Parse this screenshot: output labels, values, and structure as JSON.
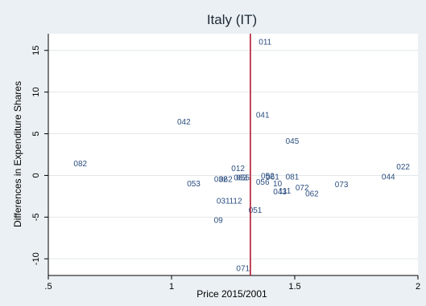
{
  "chart_data": {
    "type": "scatter",
    "title": "Italy (IT)",
    "xlabel": "Price 2015/2001",
    "ylabel": "Differences in Expenditure Shares",
    "xlim": [
      0.5,
      2.0
    ],
    "ylim": [
      -12.0,
      17.0
    ],
    "x_ticks": [
      {
        "value": 0.5,
        "label": ".5"
      },
      {
        "value": 1.0,
        "label": "1"
      },
      {
        "value": 1.5,
        "label": "1.5"
      },
      {
        "value": 2.0,
        "label": "2"
      }
    ],
    "y_ticks": [
      {
        "value": -10,
        "label": "-10"
      },
      {
        "value": -5,
        "label": "-5"
      },
      {
        "value": 0,
        "label": "0"
      },
      {
        "value": 5,
        "label": "5"
      },
      {
        "value": 10,
        "label": "10"
      },
      {
        "value": 15,
        "label": "15"
      }
    ],
    "grid": true,
    "reference_line": {
      "x": 1.32,
      "color": "#b0182d"
    },
    "marker_label_color": "#2a4e7f",
    "points": [
      {
        "label": "011",
        "x": 1.38,
        "y": 16.0
      },
      {
        "label": "041",
        "x": 1.37,
        "y": 7.2
      },
      {
        "label": "042",
        "x": 1.05,
        "y": 6.4
      },
      {
        "label": "045",
        "x": 1.49,
        "y": 4.1
      },
      {
        "label": "082",
        "x": 0.63,
        "y": 1.4
      },
      {
        "label": "022",
        "x": 1.94,
        "y": 1.0
      },
      {
        "label": "012",
        "x": 1.27,
        "y": 0.8
      },
      {
        "label": "044",
        "x": 1.88,
        "y": -0.2
      },
      {
        "label": "081",
        "x": 1.49,
        "y": -0.2
      },
      {
        "label": "052",
        "x": 1.39,
        "y": -0.1
      },
      {
        "label": "061",
        "x": 1.41,
        "y": -0.2
      },
      {
        "label": "063",
        "x": 1.28,
        "y": -0.3
      },
      {
        "label": "055",
        "x": 1.29,
        "y": -0.3
      },
      {
        "label": "032",
        "x": 1.2,
        "y": -0.5
      },
      {
        "label": "062",
        "x": 1.22,
        "y": -0.5
      },
      {
        "label": "053",
        "x": 1.09,
        "y": -1.0
      },
      {
        "label": "056",
        "x": 1.37,
        "y": -0.8
      },
      {
        "label": "10",
        "x": 1.43,
        "y": -1.0
      },
      {
        "label": "073",
        "x": 1.69,
        "y": -1.1
      },
      {
        "label": "072",
        "x": 1.53,
        "y": -1.5
      },
      {
        "label": "043",
        "x": 1.44,
        "y": -2.0
      },
      {
        "label": "111",
        "x": 1.46,
        "y": -1.9
      },
      {
        "label": "062",
        "x": 1.57,
        "y": -2.2
      },
      {
        "label": "031",
        "x": 1.21,
        "y": -3.1
      },
      {
        "label": "112",
        "x": 1.26,
        "y": -3.1
      },
      {
        "label": "051",
        "x": 1.34,
        "y": -4.2
      },
      {
        "label": "09",
        "x": 1.19,
        "y": -5.4
      },
      {
        "label": "071",
        "x": 1.29,
        "y": -11.2
      }
    ]
  }
}
